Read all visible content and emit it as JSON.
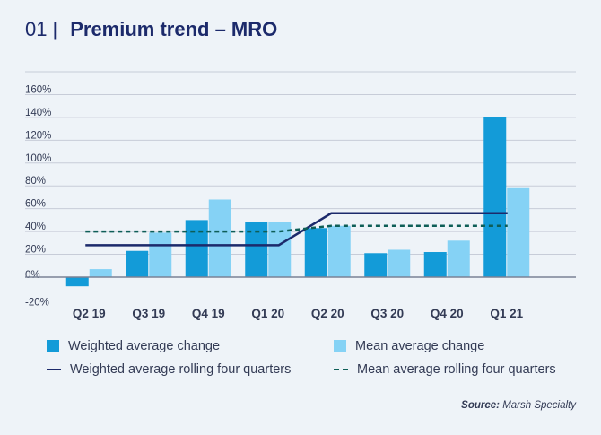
{
  "header": {
    "number": "01",
    "separator": "|",
    "title": "Premium trend – MRO"
  },
  "colors": {
    "weighted_bar": "#139bd8",
    "mean_bar": "#85d2f5",
    "weighted_line": "#1c2a6b",
    "mean_line": "#0e5e57",
    "grid": "#c7ccd8",
    "axis_text": "#333b55"
  },
  "chart_data": {
    "type": "bar",
    "title": "Premium trend – MRO",
    "xlabel": "",
    "ylabel": "",
    "categories": [
      "Q2 19",
      "Q3 19",
      "Q4 19",
      "Q1 20",
      "Q2 20",
      "Q3 20",
      "Q4 20",
      "Q1 21"
    ],
    "yticks": [
      -20,
      0,
      20,
      40,
      60,
      80,
      100,
      120,
      140,
      160
    ],
    "ytick_labels": [
      "-20%",
      "0%",
      "20%",
      "40%",
      "60%",
      "80%",
      "100%",
      "120%",
      "140%",
      "160%"
    ],
    "ylim": [
      -20,
      180
    ],
    "series": [
      {
        "name": "Weighted average change",
        "kind": "bar",
        "values": [
          -8,
          23,
          50,
          48,
          43,
          21,
          22,
          140
        ]
      },
      {
        "name": "Mean average change",
        "kind": "bar",
        "values": [
          7,
          39,
          68,
          48,
          45,
          24,
          32,
          78
        ]
      },
      {
        "name": "Weighted average rolling four quarters",
        "kind": "line",
        "style": "solid",
        "values": [
          28,
          28,
          28,
          28,
          56,
          56,
          56,
          56
        ]
      },
      {
        "name": "Mean average rolling four quarters",
        "kind": "line",
        "style": "dashed",
        "values": [
          40,
          40,
          40,
          40,
          45,
          45,
          45,
          45
        ]
      }
    ]
  },
  "legend": {
    "weighted_change": "Weighted average change",
    "mean_change": "Mean average change",
    "weighted_rolling": "Weighted average rolling four quarters",
    "mean_rolling": "Mean average rolling four quarters"
  },
  "source": {
    "label": "Source:",
    "text": "Marsh Specialty"
  }
}
